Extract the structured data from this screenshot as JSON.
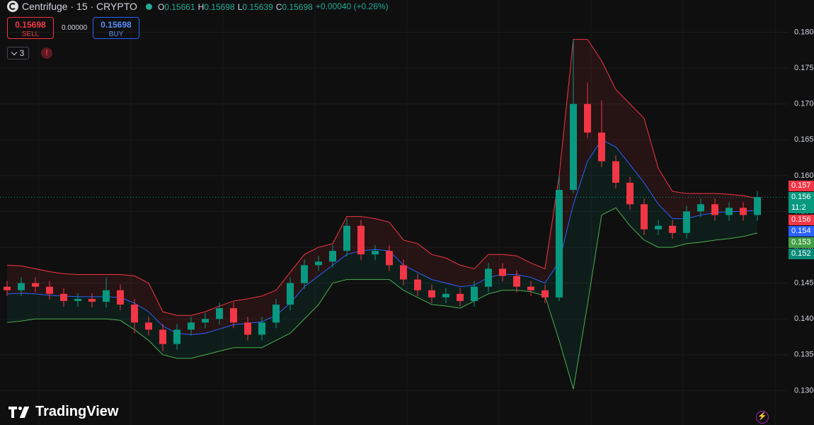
{
  "header": {
    "title": "Centrifuge · 15 · CRYPTO",
    "ohlc": [
      {
        "key": "O",
        "value": "0.15661"
      },
      {
        "key": "H",
        "value": "0.15698"
      },
      {
        "key": "L",
        "value": "0.15639"
      },
      {
        "key": "C",
        "value": "0.15698"
      }
    ],
    "change": "+0.00040 (+0.26%)"
  },
  "trade": {
    "sell_price": "0.15698",
    "sell_label": "SELL",
    "spread": "0.00000",
    "buy_price": "0.15698",
    "buy_label": "BUY",
    "indicators": "3"
  },
  "brand": "TradingView",
  "chart_data": {
    "type": "candlestick",
    "open": [
      0.1445,
      0.144,
      0.145,
      0.1445,
      0.1435,
      0.1425,
      0.1428,
      0.1424,
      0.144,
      0.142,
      0.1395,
      0.1385,
      0.1365,
      0.1385,
      0.1395,
      0.14,
      0.1415,
      0.1395,
      0.1378,
      0.1395,
      0.142,
      0.145,
      0.1475,
      0.148,
      0.1495,
      0.153,
      0.149,
      0.1495,
      0.1475,
      0.1455,
      0.144,
      0.143,
      0.1435,
      0.1425,
      0.1445,
      0.147,
      0.146,
      0.1445,
      0.144,
      0.143,
      0.158,
      0.17,
      0.166,
      0.162,
      0.159,
      0.156,
      0.1525,
      0.153,
      0.152,
      0.155,
      0.156,
      0.1545,
      0.1555,
      0.1545
    ],
    "high": [
      0.1453,
      0.1458,
      0.1458,
      0.1453,
      0.1443,
      0.1436,
      0.1436,
      0.1458,
      0.1448,
      0.1428,
      0.1403,
      0.1393,
      0.1393,
      0.1403,
      0.1408,
      0.1423,
      0.1423,
      0.1403,
      0.1403,
      0.1428,
      0.1458,
      0.1483,
      0.1488,
      0.1503,
      0.154,
      0.1538,
      0.1503,
      0.1503,
      0.1483,
      0.1463,
      0.1448,
      0.1443,
      0.1443,
      0.1453,
      0.1478,
      0.1478,
      0.1468,
      0.1453,
      0.1448,
      0.16,
      0.179,
      0.173,
      0.1705,
      0.1628,
      0.1598,
      0.1568,
      0.1538,
      0.1538,
      0.1558,
      0.1568,
      0.1568,
      0.1563,
      0.1563,
      0.1578
    ],
    "low": [
      0.1432,
      0.1432,
      0.1437,
      0.1427,
      0.1417,
      0.1417,
      0.1416,
      0.1416,
      0.1412,
      0.138,
      0.1377,
      0.1355,
      0.1357,
      0.1377,
      0.1387,
      0.1392,
      0.1387,
      0.137,
      0.137,
      0.1387,
      0.1412,
      0.1442,
      0.1467,
      0.1472,
      0.1487,
      0.1482,
      0.1482,
      0.1467,
      0.1447,
      0.1432,
      0.1422,
      0.1422,
      0.1417,
      0.1417,
      0.1437,
      0.1452,
      0.1437,
      0.1432,
      0.1422,
      0.1425,
      0.1575,
      0.1652,
      0.1612,
      0.1582,
      0.1552,
      0.1517,
      0.1517,
      0.1512,
      0.1512,
      0.1542,
      0.1537,
      0.1537,
      0.1537,
      0.1537
    ],
    "close": [
      0.144,
      0.145,
      0.1445,
      0.1435,
      0.1425,
      0.1428,
      0.1424,
      0.144,
      0.142,
      0.1395,
      0.1385,
      0.1365,
      0.1385,
      0.1395,
      0.14,
      0.1415,
      0.1395,
      0.1378,
      0.1395,
      0.142,
      0.145,
      0.1475,
      0.148,
      0.1495,
      0.153,
      0.149,
      0.1495,
      0.1475,
      0.1455,
      0.144,
      0.143,
      0.1435,
      0.1425,
      0.1445,
      0.147,
      0.146,
      0.1445,
      0.144,
      0.143,
      0.158,
      0.17,
      0.166,
      0.162,
      0.159,
      0.156,
      0.1525,
      0.153,
      0.152,
      0.155,
      0.156,
      0.1545,
      0.1555,
      0.1545,
      0.157
    ],
    "bands": {
      "upper": [
        0.1475,
        0.1474,
        0.147,
        0.1466,
        0.1463,
        0.1462,
        0.1462,
        0.1462,
        0.1462,
        0.146,
        0.145,
        0.141,
        0.1405,
        0.1405,
        0.141,
        0.1418,
        0.1425,
        0.1428,
        0.1432,
        0.144,
        0.1465,
        0.149,
        0.15,
        0.1505,
        0.1543,
        0.1543,
        0.154,
        0.1535,
        0.151,
        0.1505,
        0.149,
        0.1485,
        0.1475,
        0.147,
        0.149,
        0.149,
        0.1488,
        0.1478,
        0.147,
        0.16,
        0.179,
        0.179,
        0.176,
        0.172,
        0.17,
        0.168,
        0.161,
        0.1578,
        0.1575,
        0.1575,
        0.1575,
        0.1574,
        0.1572,
        0.1568
      ],
      "middle": [
        0.1435,
        0.1436,
        0.1435,
        0.1433,
        0.1432,
        0.1431,
        0.1431,
        0.1431,
        0.143,
        0.1422,
        0.141,
        0.139,
        0.138,
        0.1378,
        0.138,
        0.1386,
        0.1392,
        0.1394,
        0.1396,
        0.1405,
        0.1422,
        0.1445,
        0.146,
        0.1475,
        0.149,
        0.1495,
        0.1497,
        0.1495,
        0.1475,
        0.1465,
        0.1455,
        0.145,
        0.1445,
        0.1447,
        0.1458,
        0.1462,
        0.1462,
        0.1458,
        0.145,
        0.148,
        0.156,
        0.162,
        0.165,
        0.164,
        0.1615,
        0.159,
        0.156,
        0.154,
        0.154,
        0.1545,
        0.1548,
        0.155,
        0.155,
        0.1552
      ],
      "lower": [
        0.1395,
        0.1397,
        0.14,
        0.14,
        0.14,
        0.14,
        0.14,
        0.14,
        0.1398,
        0.1385,
        0.137,
        0.135,
        0.1345,
        0.1345,
        0.135,
        0.1355,
        0.136,
        0.136,
        0.136,
        0.137,
        0.138,
        0.14,
        0.142,
        0.145,
        0.1455,
        0.1455,
        0.1455,
        0.1455,
        0.144,
        0.143,
        0.142,
        0.1418,
        0.1415,
        0.1425,
        0.1435,
        0.144,
        0.144,
        0.1438,
        0.1432,
        0.137,
        0.1302,
        0.142,
        0.1545,
        0.1555,
        0.153,
        0.151,
        0.15,
        0.15,
        0.1505,
        0.1507,
        0.151,
        0.1512,
        0.1515,
        0.152
      ]
    },
    "up_color": "#089981",
    "down_color": "#f23645",
    "band_colors": {
      "upper": "#f23645",
      "middle": "#2962ff",
      "lower": "#4caf50"
    },
    "last_price": 0.15698,
    "ylim": [
      0.1252,
      0.1845
    ],
    "yticks": [
      {
        "value": 0.13,
        "label": "0.130"
      },
      {
        "value": 0.135,
        "label": "0.135"
      },
      {
        "value": 0.14,
        "label": "0.140"
      },
      {
        "value": 0.145,
        "label": "0.145"
      },
      {
        "value": 0.15,
        "label": "0.150"
      },
      {
        "value": 0.155,
        "label": "0.155"
      },
      {
        "value": 0.16,
        "label": "0.160"
      },
      {
        "value": 0.165,
        "label": "0.165"
      },
      {
        "value": 0.17,
        "label": "0.170"
      },
      {
        "value": 0.175,
        "label": "0.175"
      },
      {
        "value": 0.18,
        "label": "0.180"
      }
    ],
    "grid": true,
    "price_labels": [
      {
        "text": "0.157",
        "color": "#f23645"
      },
      {
        "text": "0.156",
        "sub": "11:2",
        "color": "#089981"
      },
      {
        "text": "0.156",
        "color": "#f23645"
      },
      {
        "text": "0.154",
        "color": "#2962ff"
      },
      {
        "text": "0.153",
        "color": "#43a047"
      },
      {
        "text": "0.152",
        "color": "#0b8a77"
      }
    ]
  }
}
